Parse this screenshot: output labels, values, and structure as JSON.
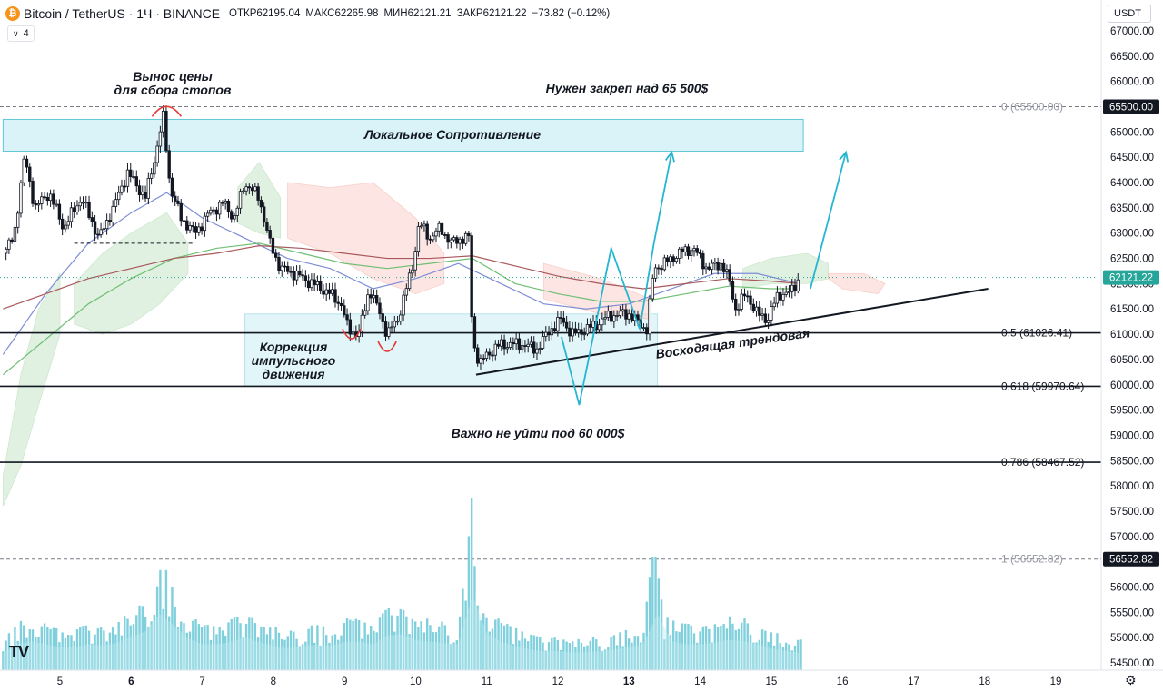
{
  "header": {
    "coin_glyph": "₿",
    "symbol": "Bitcoin / TetherUS · 1Ч · BINANCE",
    "open_label": "ОТКР",
    "open": "62195.04",
    "high_label": "МАКС",
    "high": "62265.98",
    "low_label": "МИН",
    "low": "62121.21",
    "close_label": "ЗАКР",
    "close": "62121.22",
    "change": "−73.82 (−0.12%)"
  },
  "indicator_toggle": {
    "chevron": "∨",
    "count": "4"
  },
  "currency": "USDT",
  "logo": "TV",
  "chart_data": {
    "type": "candlestick",
    "pair": "Bitcoin / TetherUS",
    "timeframe": "1Ч",
    "exchange": "BINANCE",
    "y_axis": {
      "range": [
        54400,
        67400
      ],
      "ticks": [
        67000,
        66500,
        66000,
        65500,
        65000,
        64500,
        64000,
        63500,
        63000,
        62500,
        62000,
        61500,
        61000,
        60500,
        60000,
        59500,
        59000,
        58500,
        58000,
        57500,
        57000,
        56500,
        56000,
        55500,
        55000,
        54500
      ],
      "tick_labels": [
        "67000.00",
        "66500.00",
        "66000.00",
        "65500.00",
        "65000.00",
        "64500.00",
        "64000.00",
        "63500.00",
        "63000.00",
        "62500.00",
        "62000.00",
        "61500.00",
        "61000.00",
        "60500.00",
        "60000.00",
        "59500.00",
        "59000.00",
        "58500.00",
        "58000.00",
        "57500.00",
        "57000.00",
        "56500.00",
        "56000.00",
        "55500.00",
        "55000.00",
        "54500.00"
      ]
    },
    "x_axis": {
      "days": [
        5,
        6,
        7,
        8,
        9,
        10,
        11,
        12,
        13,
        14,
        15,
        16,
        17,
        18,
        19
      ],
      "labels": [
        "5",
        "6",
        "7",
        "8",
        "9",
        "10",
        "11",
        "12",
        "13",
        "14",
        "15",
        "16",
        "17",
        "18",
        "19"
      ],
      "bold": [
        "6",
        "13"
      ],
      "range": [
        4.2,
        19.5
      ]
    },
    "price_path": [
      [
        4.2,
        62600
      ],
      [
        4.35,
        62900
      ],
      [
        4.5,
        64500
      ],
      [
        4.65,
        63500
      ],
      [
        4.85,
        63800
      ],
      [
        5.05,
        63100
      ],
      [
        5.3,
        63700
      ],
      [
        5.55,
        62900
      ],
      [
        5.75,
        63500
      ],
      [
        5.95,
        64200
      ],
      [
        6.2,
        63700
      ],
      [
        6.35,
        64600
      ],
      [
        6.45,
        65300
      ],
      [
        6.55,
        63900
      ],
      [
        6.7,
        63300
      ],
      [
        6.9,
        63000
      ],
      [
        7.1,
        63400
      ],
      [
        7.3,
        63600
      ],
      [
        7.45,
        63300
      ],
      [
        7.6,
        64000
      ],
      [
        7.8,
        63700
      ],
      [
        7.95,
        62800
      ],
      [
        8.1,
        62300
      ],
      [
        8.3,
        62200
      ],
      [
        8.55,
        62000
      ],
      [
        8.8,
        61800
      ],
      [
        8.95,
        61600
      ],
      [
        9.05,
        61100
      ],
      [
        9.2,
        61000
      ],
      [
        9.35,
        61900
      ],
      [
        9.5,
        61400
      ],
      [
        9.6,
        61000
      ],
      [
        9.75,
        61300
      ],
      [
        9.85,
        61800
      ],
      [
        9.95,
        62300
      ],
      [
        10.05,
        63200
      ],
      [
        10.2,
        62900
      ],
      [
        10.35,
        63100
      ],
      [
        10.5,
        62800
      ],
      [
        10.65,
        62900
      ],
      [
        10.75,
        62900
      ],
      [
        10.8,
        60900
      ],
      [
        10.9,
        60400
      ],
      [
        11.0,
        60600
      ],
      [
        11.2,
        60800
      ],
      [
        11.5,
        60800
      ],
      [
        11.7,
        60700
      ],
      [
        11.9,
        61100
      ],
      [
        12.05,
        61300
      ],
      [
        12.2,
        61000
      ],
      [
        12.4,
        61100
      ],
      [
        12.55,
        61200
      ],
      [
        12.7,
        61350
      ],
      [
        12.85,
        61400
      ],
      [
        13.0,
        61400
      ],
      [
        13.15,
        61200
      ],
      [
        13.25,
        61100
      ],
      [
        13.35,
        62300
      ],
      [
        13.5,
        62400
      ],
      [
        13.7,
        62600
      ],
      [
        13.9,
        62700
      ],
      [
        14.1,
        62300
      ],
      [
        14.3,
        62400
      ],
      [
        14.4,
        62100
      ],
      [
        14.5,
        61500
      ],
      [
        14.65,
        61800
      ],
      [
        14.8,
        61400
      ],
      [
        14.95,
        61300
      ],
      [
        15.1,
        61800
      ],
      [
        15.25,
        61800
      ],
      [
        15.4,
        62121
      ]
    ],
    "volume_profile": [
      [
        4.2,
        0.2
      ],
      [
        4.5,
        0.35
      ],
      [
        4.8,
        0.3
      ],
      [
        5.1,
        0.25
      ],
      [
        5.4,
        0.3
      ],
      [
        5.7,
        0.28
      ],
      [
        5.9,
        0.35
      ],
      [
        6.2,
        0.45
      ],
      [
        6.45,
        0.7
      ],
      [
        6.7,
        0.4
      ],
      [
        7.0,
        0.3
      ],
      [
        7.3,
        0.3
      ],
      [
        7.6,
        0.38
      ],
      [
        7.9,
        0.3
      ],
      [
        8.2,
        0.25
      ],
      [
        8.5,
        0.3
      ],
      [
        8.8,
        0.28
      ],
      [
        9.1,
        0.35
      ],
      [
        9.4,
        0.3
      ],
      [
        9.7,
        0.45
      ],
      [
        10.0,
        0.35
      ],
      [
        10.3,
        0.32
      ],
      [
        10.6,
        0.3
      ],
      [
        10.78,
        1.0
      ],
      [
        10.85,
        0.55
      ],
      [
        11.1,
        0.35
      ],
      [
        11.4,
        0.28
      ],
      [
        11.7,
        0.22
      ],
      [
        12.0,
        0.22
      ],
      [
        12.3,
        0.2
      ],
      [
        12.6,
        0.22
      ],
      [
        12.9,
        0.25
      ],
      [
        13.2,
        0.3
      ],
      [
        13.35,
        0.8
      ],
      [
        13.5,
        0.35
      ],
      [
        13.8,
        0.3
      ],
      [
        14.1,
        0.3
      ],
      [
        14.4,
        0.35
      ],
      [
        14.7,
        0.33
      ],
      [
        15.0,
        0.25
      ],
      [
        15.4,
        0.2
      ]
    ],
    "ma_lines": [
      {
        "color": "#7e8ed6",
        "points": [
          [
            4.2,
            60600
          ],
          [
            4.8,
            61800
          ],
          [
            5.4,
            62800
          ],
          [
            6.0,
            63400
          ],
          [
            6.5,
            63800
          ],
          [
            7.0,
            63300
          ],
          [
            7.6,
            62900
          ],
          [
            8.2,
            62500
          ],
          [
            8.8,
            62300
          ],
          [
            9.4,
            61900
          ],
          [
            10.0,
            62100
          ],
          [
            10.6,
            62400
          ],
          [
            11.2,
            62000
          ],
          [
            11.8,
            61600
          ],
          [
            12.4,
            61500
          ],
          [
            13.0,
            61600
          ],
          [
            13.6,
            61900
          ],
          [
            14.2,
            62200
          ],
          [
            14.8,
            62200
          ],
          [
            15.4,
            62000
          ]
        ]
      },
      {
        "color": "#6fbf73",
        "points": [
          [
            4.2,
            60200
          ],
          [
            4.8,
            60900
          ],
          [
            5.4,
            61600
          ],
          [
            6.0,
            62100
          ],
          [
            6.6,
            62500
          ],
          [
            7.2,
            62700
          ],
          [
            7.8,
            62800
          ],
          [
            8.4,
            62600
          ],
          [
            9.0,
            62400
          ],
          [
            9.6,
            62300
          ],
          [
            10.2,
            62400
          ],
          [
            10.8,
            62500
          ],
          [
            11.4,
            62000
          ],
          [
            12.0,
            61800
          ],
          [
            12.6,
            61650
          ],
          [
            13.2,
            61650
          ],
          [
            13.8,
            61800
          ],
          [
            14.4,
            61950
          ],
          [
            15.0,
            61900
          ],
          [
            15.4,
            61900
          ]
        ]
      },
      {
        "color": "#a8585c",
        "points": [
          [
            4.2,
            61500
          ],
          [
            4.8,
            61800
          ],
          [
            5.4,
            62100
          ],
          [
            6.0,
            62300
          ],
          [
            6.6,
            62500
          ],
          [
            7.2,
            62600
          ],
          [
            7.8,
            62750
          ],
          [
            8.4,
            62700
          ],
          [
            9.0,
            62600
          ],
          [
            9.6,
            62500
          ],
          [
            10.2,
            62500
          ],
          [
            10.8,
            62550
          ],
          [
            11.4,
            62350
          ],
          [
            12.0,
            62150
          ],
          [
            12.6,
            62000
          ],
          [
            13.2,
            61900
          ],
          [
            13.8,
            62000
          ],
          [
            14.4,
            62100
          ],
          [
            15.0,
            62050
          ],
          [
            15.4,
            62000
          ]
        ]
      }
    ],
    "ichimoku": {
      "green": [
        [
          [
            5.2,
            62000
          ],
          [
            5.6,
            62600
          ],
          [
            6.0,
            63000
          ],
          [
            6.5,
            63400
          ],
          [
            6.8,
            62800
          ],
          [
            6.8,
            62200
          ],
          [
            6.4,
            61600
          ],
          [
            6.0,
            61200
          ],
          [
            5.6,
            61000
          ],
          [
            5.2,
            61200
          ]
        ],
        [
          [
            4.2,
            58200
          ],
          [
            4.45,
            60200
          ],
          [
            4.7,
            61500
          ],
          [
            5.0,
            62200
          ],
          [
            5.0,
            61000
          ],
          [
            4.7,
            59600
          ],
          [
            4.45,
            58400
          ],
          [
            4.2,
            57600
          ]
        ],
        [
          [
            7.5,
            63900
          ],
          [
            7.8,
            64400
          ],
          [
            8.1,
            63700
          ],
          [
            8.1,
            62900
          ],
          [
            7.8,
            63000
          ],
          [
            7.5,
            63200
          ]
        ],
        [
          [
            14.6,
            62300
          ],
          [
            15.0,
            62500
          ],
          [
            15.5,
            62600
          ],
          [
            15.8,
            62400
          ],
          [
            15.8,
            62100
          ],
          [
            15.5,
            62000
          ],
          [
            15.0,
            62000
          ],
          [
            14.6,
            61900
          ]
        ]
      ],
      "red": [
        [
          [
            8.2,
            64000
          ],
          [
            8.8,
            63900
          ],
          [
            9.4,
            64000
          ],
          [
            10.0,
            63300
          ],
          [
            10.4,
            62600
          ],
          [
            10.4,
            62000
          ],
          [
            10.0,
            61800
          ],
          [
            9.4,
            62100
          ],
          [
            8.8,
            62600
          ],
          [
            8.2,
            62900
          ]
        ],
        [
          [
            11.8,
            62400
          ],
          [
            12.6,
            62100
          ],
          [
            13.3,
            61700
          ],
          [
            13.3,
            61300
          ],
          [
            12.6,
            61400
          ],
          [
            11.8,
            61700
          ]
        ],
        [
          [
            15.8,
            62200
          ],
          [
            16.3,
            62200
          ],
          [
            16.6,
            62000
          ],
          [
            16.5,
            61800
          ],
          [
            16.0,
            61900
          ],
          [
            15.8,
            62100
          ]
        ]
      ]
    },
    "levels": [
      {
        "price": 65500,
        "label": "0 (65500.00)",
        "dashed": true,
        "color": "#787b86"
      },
      {
        "price": 61026.41,
        "label": "0.5 (61026.41)",
        "dashed": false,
        "color": "#131722"
      },
      {
        "price": 59970.64,
        "label": "0.618 (59970.64)",
        "dashed": false,
        "color": "#131722"
      },
      {
        "price": 58467.52,
        "label": "0.786 (58467.52)",
        "dashed": false,
        "color": "#131722"
      },
      {
        "price": 56552.82,
        "label": "1 (56552.82)",
        "dashed": true,
        "color": "#787b86"
      }
    ],
    "price_tags": [
      {
        "price": 65500,
        "label": "65500.00",
        "bg": "#131722"
      },
      {
        "price": 62121.22,
        "label": "62121.22",
        "bg": "#26a69a"
      },
      {
        "price": 56552.82,
        "label": "56552.82",
        "bg": "#131722"
      }
    ],
    "last_price": 62121.22,
    "zones": [
      {
        "name": "resistance",
        "d1": 4.2,
        "d2": 15.45,
        "p1": 65250,
        "p2": 64620,
        "color": "#d9f3f8"
      },
      {
        "name": "correction",
        "d1": 7.6,
        "d2": 13.4,
        "p1": 61400,
        "p2": 59970,
        "color": "#e2f5f9"
      }
    ],
    "trendline": {
      "from": [
        10.85,
        60200
      ],
      "to": [
        18.05,
        61900
      ]
    },
    "dashed_segments": [
      {
        "from": [
          5.2,
          62800
        ],
        "to": [
          6.9,
          62800
        ]
      }
    ],
    "projections": [
      {
        "points": [
          [
            12.05,
            60950
          ],
          [
            12.3,
            59600
          ],
          [
            12.75,
            62700
          ],
          [
            13.15,
            61100
          ],
          [
            13.35,
            62800
          ],
          [
            13.6,
            64600
          ]
        ],
        "arrow": true
      },
      {
        "points": [
          [
            15.55,
            61900
          ],
          [
            16.05,
            64600
          ]
        ],
        "arrow": true
      }
    ],
    "arcs": [
      {
        "at": [
          6.5,
          65450
        ],
        "type": "top"
      },
      {
        "at": [
          9.1,
          61000
        ],
        "type": "bottom"
      },
      {
        "at": [
          9.6,
          60750
        ],
        "type": "bottom"
      }
    ],
    "annotations": {
      "sweep_line1": "Вынос цены",
      "sweep_line2": "для сбора стопов",
      "need_hold": "Нужен закреп над 65 500$",
      "local_resistance": "Локальное Сопротивление",
      "correction_line1": "Коррекция",
      "correction_line2": "импульсного",
      "correction_line3": "движения",
      "uptrend": "Восходящая трендовая",
      "dont_break": "Важно не уйти под 60 000$"
    }
  }
}
